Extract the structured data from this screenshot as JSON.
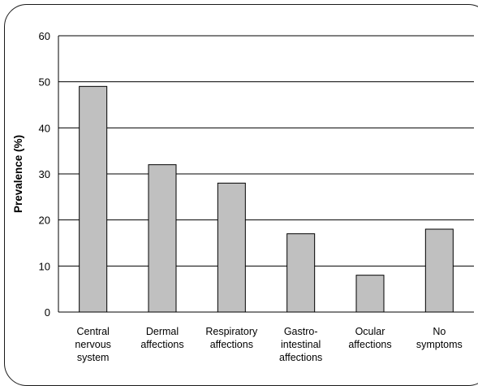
{
  "chart_data": {
    "type": "bar",
    "title": "",
    "xlabel": "",
    "ylabel": "Prevalence (%)",
    "ylim": [
      0,
      60
    ],
    "yticks": [
      "0",
      "10",
      "20",
      "30",
      "40",
      "50",
      "60"
    ],
    "grid": true,
    "categories": [
      [
        "Central",
        "nervous",
        "system"
      ],
      [
        "Dermal",
        "affections"
      ],
      [
        "Respiratory",
        "affections"
      ],
      [
        "Gastro-",
        "intestinal",
        "affections"
      ],
      [
        "Ocular",
        "affections"
      ],
      [
        "No",
        "symptoms"
      ]
    ],
    "values": [
      49,
      32,
      28,
      17,
      8,
      18
    ],
    "colors": {
      "bar_fill": "#c0c0c0",
      "bar_stroke": "#000000",
      "grid": "#000000"
    }
  }
}
